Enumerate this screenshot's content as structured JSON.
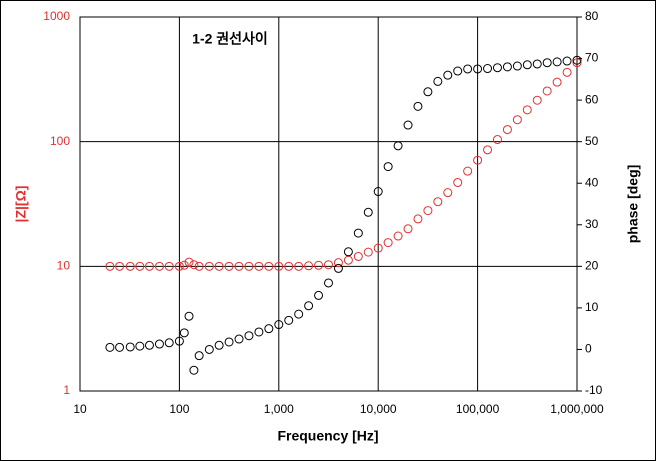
{
  "chart_data": {
    "type": "scatter",
    "annotation": "1-2 권선사이",
    "x_label": "Frequency [Hz]",
    "y_label": "|Z|[Ω]",
    "y2_label": "phase [deg]",
    "x": [
      20,
      25,
      32,
      40,
      50,
      63,
      79,
      100,
      112,
      125,
      140,
      158,
      200,
      251,
      316,
      398,
      501,
      631,
      794,
      1000,
      1259,
      1585,
      1995,
      2512,
      3162,
      3981,
      5012,
      6310,
      7943,
      10000,
      12589,
      15849,
      19953,
      25119,
      31623,
      39811,
      50119,
      63096,
      79433,
      100000,
      125893,
      158489,
      199526,
      251189,
      316228,
      398107,
      501187,
      630957,
      794328,
      1000000
    ],
    "series": [
      {
        "color": "#e03030",
        "axis": "y",
        "values": [
          10,
          10,
          10,
          10,
          10,
          10,
          10,
          10,
          10.2,
          10.8,
          10.3,
          10,
          10,
          10,
          10,
          10,
          10,
          10,
          10,
          10,
          10,
          10,
          10.1,
          10.2,
          10.3,
          10.7,
          11.2,
          12,
          13,
          14,
          15.5,
          17.5,
          20,
          24,
          28,
          33,
          39,
          47,
          58,
          71,
          86,
          104,
          125,
          150,
          180,
          215,
          255,
          300,
          360,
          430
        ]
      },
      {
        "color": "#000000",
        "axis": "y2",
        "values": [
          0.5,
          0.5,
          0.6,
          0.8,
          1,
          1.3,
          1.6,
          2,
          4,
          8,
          -5,
          -1.5,
          0,
          1,
          1.8,
          2.5,
          3.3,
          4.2,
          5,
          6,
          7,
          8.5,
          10.5,
          13,
          16,
          19.5,
          23.5,
          28,
          33,
          38,
          44,
          49,
          54,
          58.5,
          62,
          64.5,
          66,
          67,
          67.5,
          67.5,
          67.6,
          67.8,
          68,
          68.2,
          68.5,
          68.7,
          69,
          69.2,
          69.4,
          69.6
        ]
      }
    ],
    "xscale": "log",
    "yscale": "log",
    "xlim": [
      10,
      1000000
    ],
    "xticks": [
      10,
      100,
      {
        "value": 1000,
        "label": "1,000"
      },
      {
        "value": 10000,
        "label": "10,000"
      },
      {
        "value": 100000,
        "label": "100,000"
      },
      {
        "value": 1000000,
        "label": "1,000,000"
      }
    ],
    "ylim": [
      1,
      1000
    ],
    "yticks": [
      1,
      10,
      100,
      1000
    ],
    "y2lim": [
      -10,
      80
    ],
    "y2ticks": [
      -10,
      0,
      10,
      20,
      30,
      40,
      50,
      60,
      70,
      80
    ],
    "grid": true,
    "y_label_color": "#e03030"
  }
}
